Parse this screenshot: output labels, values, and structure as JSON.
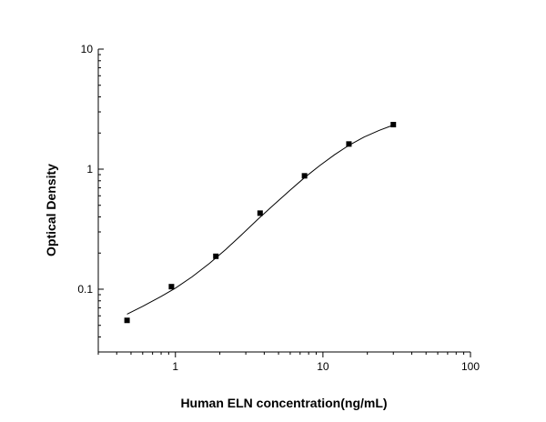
{
  "chart_data": {
    "type": "scatter",
    "title": "",
    "xlabel": "Human ELN concentration(ng/mL)",
    "ylabel": "Optical Density",
    "x_scale": "log",
    "y_scale": "log",
    "xlim": [
      0.3,
      100
    ],
    "ylim": [
      0.03,
      10
    ],
    "x_ticks": [
      {
        "value": 1,
        "label": "1"
      },
      {
        "value": 10,
        "label": "10"
      },
      {
        "value": 100,
        "label": "100"
      }
    ],
    "y_ticks": [
      {
        "value": 0.1,
        "label": "0.1"
      },
      {
        "value": 1,
        "label": "1"
      },
      {
        "value": 10,
        "label": "10"
      }
    ],
    "grid": false,
    "legend": "none",
    "series": [
      {
        "marker": "square",
        "color": "#000000",
        "x": [
          0.47,
          0.94,
          1.88,
          3.75,
          7.5,
          15,
          30
        ],
        "y": [
          0.055,
          0.105,
          0.188,
          0.43,
          0.88,
          1.62,
          2.35
        ]
      }
    ],
    "fit_curve": {
      "color": "#000000",
      "x": [
        0.47,
        0.6,
        0.8,
        1.0,
        1.3,
        1.7,
        2.2,
        2.8,
        3.6,
        4.6,
        6.0,
        7.5,
        9.5,
        12,
        15,
        19,
        24,
        30
      ],
      "y": [
        0.062,
        0.072,
        0.087,
        0.102,
        0.127,
        0.164,
        0.215,
        0.283,
        0.38,
        0.5,
        0.67,
        0.85,
        1.07,
        1.32,
        1.58,
        1.85,
        2.1,
        2.33
      ]
    }
  }
}
